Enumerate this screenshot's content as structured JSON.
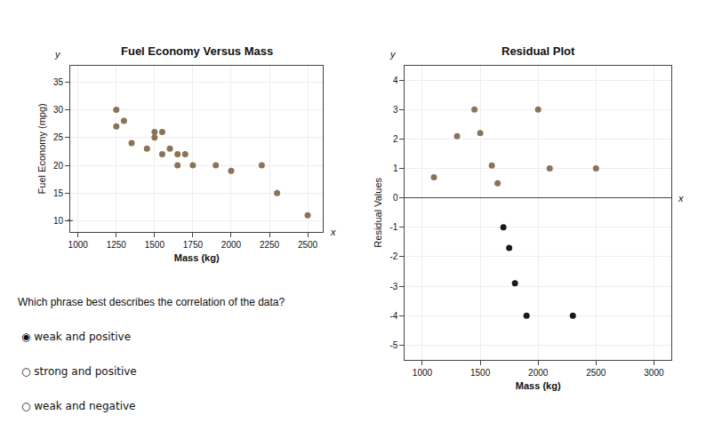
{
  "chart_data": [
    {
      "type": "scatter",
      "title": "Fuel Economy Versus Mass",
      "xlabel": "Mass (kg)",
      "ylabel": "Fuel Economy (mpg)",
      "x": [
        1250,
        1250,
        1300,
        1350,
        1450,
        1500,
        1500,
        1550,
        1550,
        1600,
        1650,
        1650,
        1700,
        1750,
        1900,
        2000,
        2200,
        2300,
        2500
      ],
      "values": [
        30,
        27,
        28,
        24,
        23,
        26,
        25,
        26,
        22,
        23,
        22,
        20,
        22,
        20,
        20,
        19,
        20,
        15,
        11
      ],
      "color": "#8B7355",
      "xlim": [
        950,
        2600
      ],
      "ylim": [
        8,
        38
      ],
      "xticks": [
        1000,
        1250,
        1500,
        1750,
        2000,
        2250,
        2500
      ],
      "yticks": [
        10,
        15,
        20,
        25,
        30,
        35
      ],
      "grid": true,
      "annotations": [
        "x",
        "y",
        "~",
        "Which phrase best describes the correlation of the data?",
        "◉ weak and positive",
        "○ strong and positive",
        "○ weak and negative"
      ]
    },
    {
      "type": "scatter",
      "title": "Residual Plot",
      "xlabel": "Mass (kg)",
      "ylabel": "Residual Values",
      "x": [
        1100,
        1300,
        1450,
        1500,
        1600,
        1650,
        1700,
        1750,
        1800,
        1900,
        2000,
        2100,
        2300,
        2500
      ],
      "values": [
        0.7,
        2.1,
        3.0,
        2.2,
        1.1,
        0.5,
        -1.0,
        -1.7,
        -2.9,
        -4.0,
        3.0,
        1.0,
        -4.0,
        1.0
      ],
      "colors": [
        "#8B7355",
        "#8B7355",
        "#8B7355",
        "#8B7355",
        "#8B7355",
        "#8B7355",
        "#1a1a1a",
        "#1a1a1a",
        "#1a1a1a",
        "#1a1a1a",
        "#8B7355",
        "#8B7355",
        "#1a1a1a",
        "#8B7355"
      ],
      "xlim": [
        850,
        3150
      ],
      "ylim": [
        -5.5,
        4.5
      ],
      "xticks": [
        1000,
        1500,
        2000,
        2500,
        3000
      ],
      "yticks": [
        -5,
        -4,
        -3,
        -2,
        -1,
        0,
        1,
        2,
        3,
        4
      ],
      "grid": true,
      "annotations": [
        "y",
        "x"
      ]
    }
  ]
}
